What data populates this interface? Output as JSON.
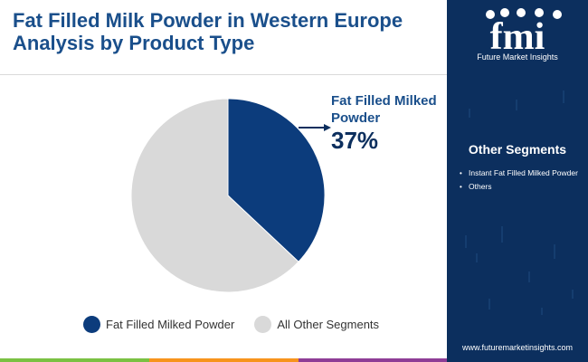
{
  "header": {
    "title_line1": "Fat Filled Milk Powder in Western Europe",
    "title_line2": "Analysis by Product Type"
  },
  "brand": {
    "logo_text": "fmi",
    "name": "Future Market Insights",
    "website": "www.futuremarketinsights.com"
  },
  "sidebar": {
    "heading": "Other Segments",
    "items": [
      "Instant Fat Filled Milked Powder",
      "Others"
    ]
  },
  "callout": {
    "label": "Fat Filled Milked Powder",
    "value": "37%"
  },
  "colors": {
    "primary": "#0c3c7c",
    "secondary": "#d9d9d9",
    "title": "#1a4f8b",
    "sidebar_bg": "#0c2f5e",
    "bar": [
      "#7ac143",
      "#f7941d",
      "#8e3d96",
      "#1a4f8b"
    ]
  },
  "chart_data": {
    "type": "pie",
    "title": "Fat Filled Milk Powder in Western Europe Analysis by Product Type",
    "slices": [
      {
        "label": "Fat Filled Milked Powder",
        "value": 37,
        "color": "#0c3c7c"
      },
      {
        "label": "All Other Segments",
        "value": 63,
        "color": "#d9d9d9"
      }
    ],
    "legend_position": "bottom"
  }
}
